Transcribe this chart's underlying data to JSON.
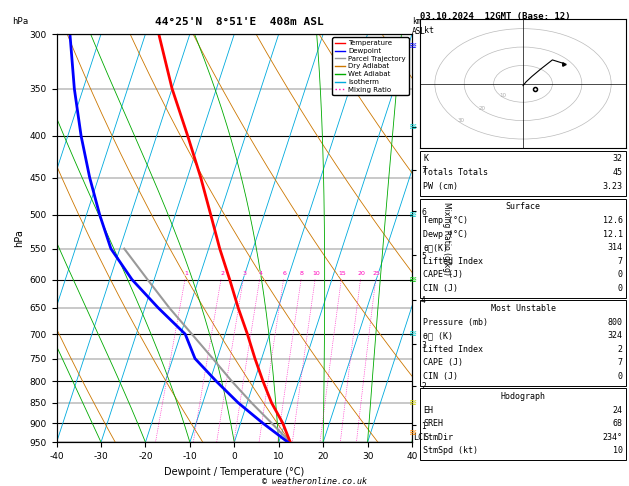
{
  "title_left": "44°25'N  8°51'E  408m ASL",
  "title_right": "03.10.2024  12GMT (Base: 12)",
  "xlabel": "Dewpoint / Temperature (°C)",
  "ylabel_left": "hPa",
  "ylabel_right_mid": "Mixing Ratio (g/kg)",
  "pressure_levels": [
    300,
    350,
    400,
    450,
    500,
    550,
    600,
    650,
    700,
    750,
    800,
    850,
    900,
    950
  ],
  "xlim": [
    -40,
    40
  ],
  "temp_color": "#FF0000",
  "dewp_color": "#0000FF",
  "parcel_color": "#999999",
  "dry_adiabat_color": "#CC7700",
  "wet_adiabat_color": "#00AA00",
  "isotherm_color": "#00AADD",
  "mixing_ratio_color": "#FF00BB",
  "background_color": "#FFFFFF",
  "legend_items": [
    {
      "label": "Temperature",
      "color": "#FF0000",
      "style": "-"
    },
    {
      "label": "Dewpoint",
      "color": "#0000FF",
      "style": "-"
    },
    {
      "label": "Parcel Trajectory",
      "color": "#999999",
      "style": "-"
    },
    {
      "label": "Dry Adiabat",
      "color": "#CC7700",
      "style": "-"
    },
    {
      "label": "Wet Adiabat",
      "color": "#00AA00",
      "style": "-"
    },
    {
      "label": "Isotherm",
      "color": "#00AADD",
      "style": "-"
    },
    {
      "label": "Mixing Ratio",
      "color": "#FF00BB",
      "style": ":"
    }
  ],
  "mixing_ratio_labels": [
    1,
    2,
    3,
    4,
    6,
    8,
    10,
    15,
    20,
    25
  ],
  "km_asl_ticks": [
    1,
    2,
    3,
    4,
    5,
    6,
    7,
    8
  ],
  "km_asl_pressures": [
    905,
    810,
    720,
    635,
    560,
    495,
    440,
    390
  ],
  "stats_K": "32",
  "stats_TT": "45",
  "stats_PW": "3.23",
  "surf_temp": "12.6",
  "surf_dewp": "12.1",
  "surf_thetae": "314",
  "surf_li": "7",
  "surf_cape": "0",
  "surf_cin": "0",
  "mu_pres": "800",
  "mu_thetae": "324",
  "mu_li": "2",
  "mu_cape": "7",
  "mu_cin": "0",
  "hodo_eh": "24",
  "hodo_sreh": "68",
  "hodo_stmdir": "234°",
  "hodo_stmspd": "10",
  "temp_profile_p": [
    950,
    900,
    850,
    800,
    750,
    700,
    650,
    600,
    550,
    500,
    450,
    400,
    350,
    300
  ],
  "temp_profile_t": [
    12.6,
    9.5,
    5.5,
    2.0,
    -1.5,
    -5.0,
    -9.0,
    -13.0,
    -17.5,
    -22.0,
    -27.0,
    -33.0,
    -40.0,
    -47.0
  ],
  "dewp_profile_p": [
    950,
    900,
    850,
    800,
    750,
    700,
    650,
    600,
    550,
    500,
    450,
    400,
    350,
    300
  ],
  "dewp_profile_t": [
    12.1,
    5.0,
    -2.0,
    -8.5,
    -15.0,
    -19.0,
    -27.0,
    -35.0,
    -42.0,
    -47.0,
    -52.0,
    -57.0,
    -62.0,
    -67.0
  ],
  "parcel_profile_p": [
    950,
    900,
    850,
    800,
    750,
    700,
    650,
    600,
    550
  ],
  "parcel_profile_t": [
    12.6,
    7.0,
    1.0,
    -5.0,
    -11.0,
    -17.5,
    -24.5,
    -31.5,
    -39.0
  ],
  "lcl_label": "LCL",
  "footer": "© weatheronline.co.uk",
  "skew": 30.0
}
